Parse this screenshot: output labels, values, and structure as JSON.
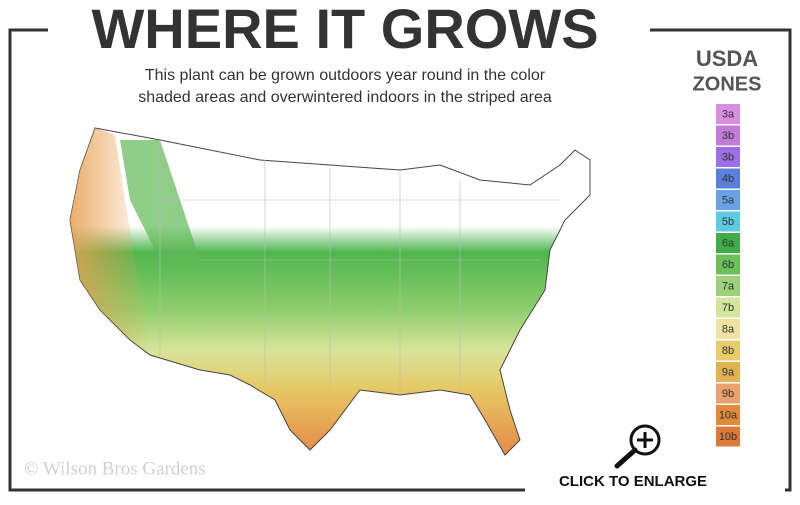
{
  "header": {
    "title": "WHERE IT GROWS",
    "subtitle": [
      "This plant can be grown outdoors year round in the color",
      "shaded areas and overwintered indoors in the striped area"
    ]
  },
  "legend": {
    "title": [
      "USDA",
      "ZONES"
    ],
    "zones": [
      {
        "label": "3a",
        "color": "#d98ee0"
      },
      {
        "label": "3b",
        "color": "#c27cd8"
      },
      {
        "label": "3b",
        "color": "#9d6fe6"
      },
      {
        "label": "4b",
        "color": "#5b7fdc"
      },
      {
        "label": "5a",
        "color": "#6aa2e8"
      },
      {
        "label": "5b",
        "color": "#5ccbe0"
      },
      {
        "label": "6a",
        "color": "#3fae49"
      },
      {
        "label": "6b",
        "color": "#6cc05a"
      },
      {
        "label": "7a",
        "color": "#9ed27a"
      },
      {
        "label": "7b",
        "color": "#d2e69c"
      },
      {
        "label": "8a",
        "color": "#eee2a4"
      },
      {
        "label": "8b",
        "color": "#e6cc6a"
      },
      {
        "label": "9a",
        "color": "#e0b252"
      },
      {
        "label": "9b",
        "color": "#eba06e"
      },
      {
        "label": "10a",
        "color": "#e38a3a"
      },
      {
        "label": "10b",
        "color": "#dc7a3a"
      }
    ]
  },
  "footer": {
    "copyright": "© Wilson Bros Gardens",
    "action": "CLICK TO ENLARGE"
  }
}
